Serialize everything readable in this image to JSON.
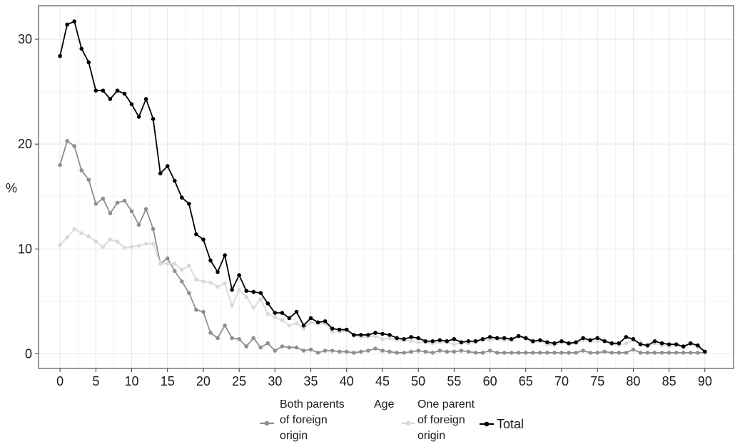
{
  "chart_data": {
    "type": "line",
    "xlabel": "Age",
    "ylabel": "%",
    "xlim": [
      -3,
      94
    ],
    "ylim": [
      -1.4,
      33.2
    ],
    "xticks": [
      0,
      5,
      10,
      15,
      20,
      25,
      30,
      35,
      40,
      45,
      50,
      55,
      60,
      65,
      70,
      75,
      80,
      85,
      90
    ],
    "yticks": [
      0,
      10,
      20,
      30
    ],
    "grid": true,
    "legend_position": "bottom",
    "legend_title": "Age",
    "x": [
      0,
      1,
      2,
      3,
      4,
      5,
      6,
      7,
      8,
      9,
      10,
      11,
      12,
      13,
      14,
      15,
      16,
      17,
      18,
      19,
      20,
      21,
      22,
      23,
      24,
      25,
      26,
      27,
      28,
      29,
      30,
      31,
      32,
      33,
      34,
      35,
      36,
      37,
      38,
      39,
      40,
      41,
      42,
      43,
      44,
      45,
      46,
      47,
      48,
      49,
      50,
      51,
      52,
      53,
      54,
      55,
      56,
      57,
      58,
      59,
      60,
      61,
      62,
      63,
      64,
      65,
      66,
      67,
      68,
      69,
      70,
      71,
      72,
      73,
      74,
      75,
      76,
      77,
      78,
      79,
      80,
      81,
      82,
      83,
      84,
      85,
      86,
      87,
      88,
      89,
      90
    ],
    "series": [
      {
        "name": "Both parents of foreign origin",
        "color": "#8f8f8f",
        "values": [
          18.0,
          20.3,
          19.8,
          17.5,
          16.6,
          14.3,
          14.8,
          13.4,
          14.4,
          14.6,
          13.6,
          12.3,
          13.8,
          11.9,
          8.6,
          9.1,
          7.9,
          6.9,
          5.8,
          4.2,
          4.0,
          2.0,
          1.5,
          2.7,
          1.5,
          1.4,
          0.7,
          1.5,
          0.6,
          1.0,
          0.3,
          0.7,
          0.6,
          0.6,
          0.3,
          0.4,
          0.1,
          0.3,
          0.3,
          0.2,
          0.2,
          0.1,
          0.2,
          0.3,
          0.5,
          0.3,
          0.2,
          0.1,
          0.1,
          0.2,
          0.3,
          0.2,
          0.1,
          0.3,
          0.2,
          0.2,
          0.3,
          0.2,
          0.1,
          0.1,
          0.3,
          0.1,
          0.1,
          0.1,
          0.1,
          0.1,
          0.1,
          0.1,
          0.1,
          0.1,
          0.1,
          0.1,
          0.1,
          0.3,
          0.1,
          0.1,
          0.2,
          0.1,
          0.1,
          0.1,
          0.4,
          0.1,
          0.1,
          0.1,
          0.1,
          0.1,
          0.1,
          0.1,
          0.1,
          0.1,
          0.1
        ]
      },
      {
        "name": "One parent of foreign origin",
        "color": "#d9d9d9",
        "values": [
          10.4,
          11.1,
          11.9,
          11.5,
          11.2,
          10.7,
          10.2,
          10.9,
          10.7,
          10.1,
          10.2,
          10.3,
          10.5,
          10.5,
          8.6,
          8.6,
          8.6,
          8.0,
          8.4,
          7.1,
          6.9,
          6.8,
          6.4,
          6.7,
          4.6,
          6.1,
          5.4,
          4.4,
          5.2,
          3.8,
          3.5,
          3.2,
          2.7,
          2.9,
          2.4,
          3.0,
          2.9,
          2.9,
          2.1,
          2.1,
          2.2,
          1.7,
          1.6,
          1.6,
          1.7,
          1.4,
          1.5,
          1.3,
          1.3,
          1.2,
          1.1,
          1.1,
          1.0,
          1.1,
          1.1,
          0.9,
          1.0,
          1.0,
          1.1,
          1.3,
          1.3,
          1.4,
          1.3,
          1.3,
          1.6,
          1.4,
          1.1,
          1.2,
          0.9,
          0.8,
          1.1,
          0.9,
          1.0,
          1.3,
          1.2,
          1.2,
          1.3,
          0.9,
          0.8,
          1.0,
          1.3,
          1.1,
          0.7,
          1.0,
          0.8,
          0.7,
          0.8,
          0.6,
          0.9,
          0.6,
          0.1
        ]
      },
      {
        "name": "Total",
        "color": "#000000",
        "values": [
          28.4,
          31.4,
          31.7,
          29.1,
          27.8,
          25.1,
          25.1,
          24.3,
          25.1,
          24.8,
          23.8,
          22.6,
          24.3,
          22.4,
          17.2,
          17.9,
          16.5,
          14.9,
          14.3,
          11.4,
          10.9,
          8.9,
          7.8,
          9.4,
          6.1,
          7.5,
          6.0,
          5.9,
          5.8,
          4.8,
          3.9,
          3.9,
          3.4,
          4.0,
          2.7,
          3.4,
          3.0,
          3.1,
          2.4,
          2.3,
          2.3,
          1.8,
          1.8,
          1.8,
          2.0,
          1.9,
          1.8,
          1.5,
          1.4,
          1.6,
          1.5,
          1.2,
          1.2,
          1.3,
          1.2,
          1.4,
          1.1,
          1.2,
          1.2,
          1.4,
          1.6,
          1.5,
          1.5,
          1.4,
          1.7,
          1.5,
          1.2,
          1.3,
          1.1,
          1.0,
          1.2,
          1.0,
          1.1,
          1.5,
          1.3,
          1.5,
          1.2,
          1.0,
          1.0,
          1.6,
          1.4,
          0.9,
          0.8,
          1.2,
          1.0,
          0.9,
          0.9,
          0.7,
          1.0,
          0.8,
          0.2
        ]
      }
    ],
    "legend": [
      {
        "line1": "Both parents",
        "line2": "of foreign",
        "line3": "origin"
      },
      {
        "line1": "One parent",
        "line2": "of foreign",
        "line3": "origin"
      },
      {
        "line1": "Total",
        "line2": "",
        "line3": ""
      }
    ]
  }
}
